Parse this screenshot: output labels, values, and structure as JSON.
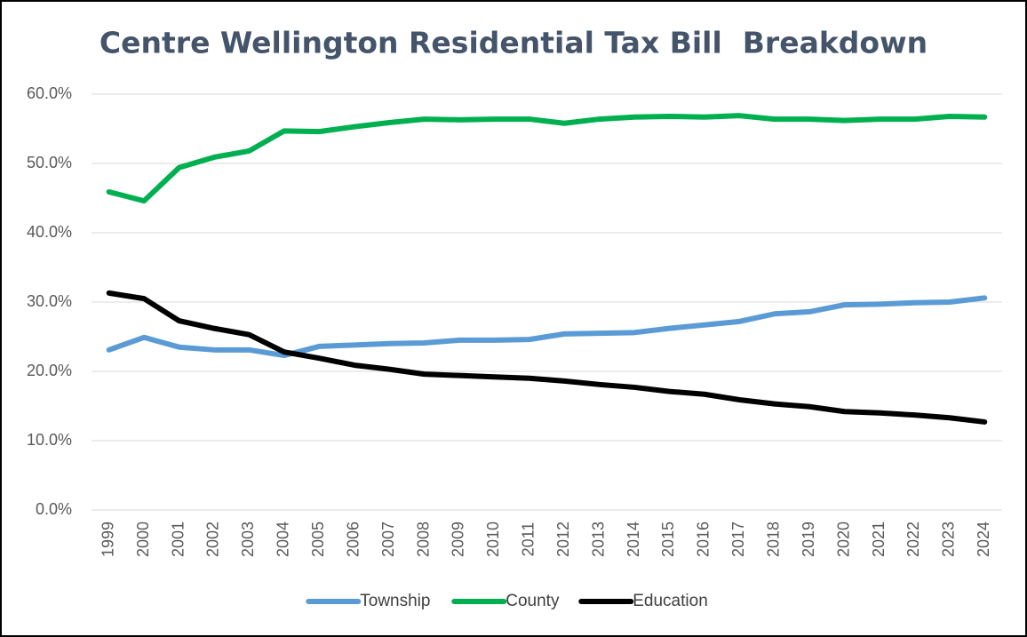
{
  "chart_data": {
    "type": "line",
    "title": "Centre Wellington Residential Tax Bill  Breakdown",
    "categories": [
      "1999",
      "2000",
      "2001",
      "2002",
      "2003",
      "2004",
      "2005",
      "2006",
      "2007",
      "2008",
      "2009",
      "2010",
      "2011",
      "2012",
      "2013",
      "2014",
      "2015",
      "2016",
      "2017",
      "2018",
      "2019",
      "2020",
      "2021",
      "2022",
      "2023",
      "2024"
    ],
    "series": [
      {
        "name": "Township",
        "color": "#5b9bd5",
        "values": [
          23.1,
          24.9,
          23.5,
          23.1,
          23.1,
          22.3,
          23.6,
          23.8,
          24.0,
          24.1,
          24.5,
          24.5,
          24.6,
          25.4,
          25.5,
          25.6,
          26.2,
          26.7,
          27.2,
          28.3,
          28.6,
          29.6,
          29.7,
          29.9,
          30.0,
          30.6
        ]
      },
      {
        "name": "County",
        "color": "#00b050",
        "values": [
          45.9,
          44.6,
          49.4,
          50.9,
          51.8,
          54.7,
          54.6,
          55.3,
          55.9,
          56.4,
          56.3,
          56.4,
          56.4,
          55.8,
          56.4,
          56.7,
          56.8,
          56.7,
          56.9,
          56.4,
          56.4,
          56.2,
          56.4,
          56.4,
          56.8,
          56.7
        ]
      },
      {
        "name": "Education",
        "color": "#000000",
        "values": [
          31.3,
          30.5,
          27.3,
          26.2,
          25.3,
          22.8,
          21.9,
          20.9,
          20.3,
          19.6,
          19.4,
          19.2,
          19.0,
          18.6,
          18.1,
          17.7,
          17.1,
          16.7,
          15.9,
          15.3,
          14.9,
          14.2,
          14.0,
          13.7,
          13.3,
          12.7
        ]
      }
    ],
    "ylim": [
      0,
      60
    ],
    "yticks": [
      {
        "value": 0,
        "label": "0.0%"
      },
      {
        "value": 10,
        "label": "10.0%"
      },
      {
        "value": 20,
        "label": "20.0%"
      },
      {
        "value": 30,
        "label": "30.0%"
      },
      {
        "value": 40,
        "label": "40.0%"
      },
      {
        "value": 50,
        "label": "50.0%"
      },
      {
        "value": 60,
        "label": "60.0%"
      }
    ],
    "grid": true,
    "legend": "bottom"
  }
}
